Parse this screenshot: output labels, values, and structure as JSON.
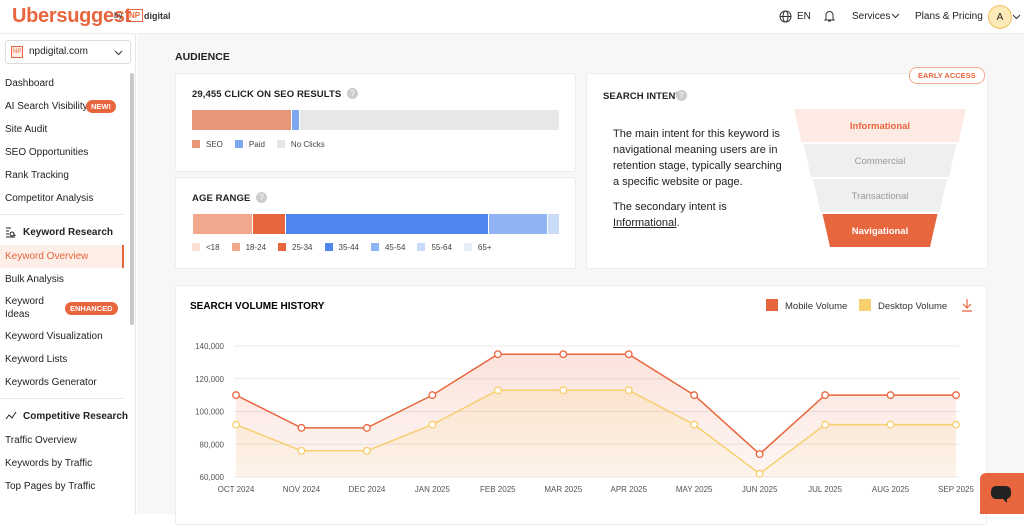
{
  "header": {
    "logo": "Ubersuggest",
    "by": "by",
    "np": "NP",
    "digital": "digital",
    "language": "EN",
    "nav": [
      "Services",
      "Plans & Pricing"
    ],
    "avatar": "A"
  },
  "sidebar": {
    "project_icon": "NP",
    "project": "npdigital.com",
    "groups": [
      {
        "items": [
          {
            "label": "Dashboard"
          },
          {
            "label": "AI Search Visibility",
            "badge": "NEW!"
          },
          {
            "label": "Site Audit"
          },
          {
            "label": "SEO Opportunities"
          },
          {
            "label": "Rank Tracking"
          },
          {
            "label": "Competitor Analysis"
          }
        ]
      },
      {
        "title": "Keyword Research",
        "items": [
          {
            "label": "Keyword Overview",
            "active": true
          },
          {
            "label": "Bulk Analysis"
          },
          {
            "label": "Keyword Ideas",
            "badge": "ENHANCED"
          },
          {
            "label": "Keyword Visualization"
          },
          {
            "label": "Keyword Lists"
          },
          {
            "label": "Keywords Generator"
          }
        ]
      },
      {
        "title": "Competitive Research",
        "items": [
          {
            "label": "Traffic Overview"
          },
          {
            "label": "Keywords by Traffic"
          },
          {
            "label": "Top Pages by Traffic"
          }
        ]
      }
    ]
  },
  "audience": {
    "title": "AUDIENCE"
  },
  "intent": {
    "title": "SEARCH INTENT",
    "badge": "EARLY ACCESS",
    "main_text": "The main intent for this keyword is navigational meaning users are in retention stage, typically searching a specific website or page.",
    "secondary_prefix": "The secondary intent is",
    "secondary_link": "Informational",
    "secondary_suffix": ".",
    "funnel": [
      "Informational",
      "Commercial",
      "Transactional",
      "Navigational"
    ]
  },
  "chart_data": [
    {
      "type": "stacked_bar",
      "title": "29,455 CLICK ON SEO RESULTS",
      "series": [
        {
          "name": "SEO",
          "color": "#e8967a",
          "values": [
            27
          ]
        },
        {
          "name": "Paid",
          "color": "#7da7f0",
          "values": [
            2
          ]
        },
        {
          "name": "No Clicks",
          "color": "#e5e7e9",
          "values": [
            71
          ]
        }
      ]
    },
    {
      "type": "stacked_bar",
      "title": "AGE RANGE",
      "series": [
        {
          "name": "<18",
          "color": "#fbe0d6",
          "values": [
            0
          ]
        },
        {
          "name": "18-24",
          "color": "#f2a88d",
          "values": [
            16
          ]
        },
        {
          "name": "25-34",
          "color": "#e8663d",
          "values": [
            9
          ]
        },
        {
          "name": "35-44",
          "color": "#4f86ee",
          "values": [
            55
          ]
        },
        {
          "name": "45-54",
          "color": "#8fb3f3",
          "values": [
            16
          ]
        },
        {
          "name": "55-64",
          "color": "#c9dbf9",
          "values": [
            3
          ]
        },
        {
          "name": "65+",
          "color": "#e6eefc",
          "values": [
            0
          ]
        }
      ]
    },
    {
      "type": "line",
      "title": "SEARCH VOLUME HISTORY",
      "categories": [
        "OCT 2024",
        "NOV 2024",
        "DEC 2024",
        "JAN 2025",
        "FEB 2025",
        "MAR 2025",
        "APR 2025",
        "MAY 2025",
        "JUN 2025",
        "JUL 2025",
        "AUG 2025",
        "SEP 2025"
      ],
      "series": [
        {
          "name": "Mobile Volume",
          "color": "#e8663d",
          "values": [
            110000,
            90000,
            90000,
            110000,
            135000,
            135000,
            135000,
            110000,
            74000,
            110000,
            110000,
            110000
          ]
        },
        {
          "name": "Desktop Volume",
          "color": "#f7cf6e",
          "values": [
            92000,
            76000,
            76000,
            92000,
            113000,
            113000,
            113000,
            92000,
            62000,
            92000,
            92000,
            92000
          ]
        }
      ],
      "ylim": [
        60000,
        140000
      ],
      "yticks": [
        {
          "value": 60000,
          "label": "60,000"
        },
        {
          "value": 80000,
          "label": "80,000"
        },
        {
          "value": 100000,
          "label": "100,000"
        },
        {
          "value": 120000,
          "label": "120,000"
        },
        {
          "value": 140000,
          "label": "140,000"
        }
      ],
      "grid": true
    }
  ]
}
